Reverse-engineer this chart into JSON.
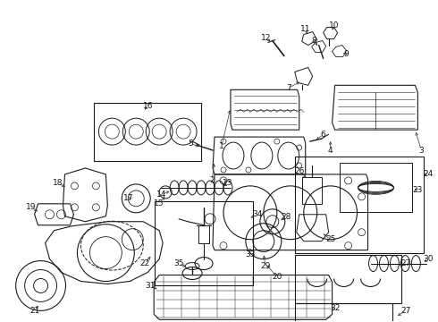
{
  "bg_color": "#ffffff",
  "fig_width": 4.9,
  "fig_height": 3.6,
  "dpi": 100,
  "font_size": 6.5,
  "line_color": "#1a1a1a",
  "lw": 0.8
}
